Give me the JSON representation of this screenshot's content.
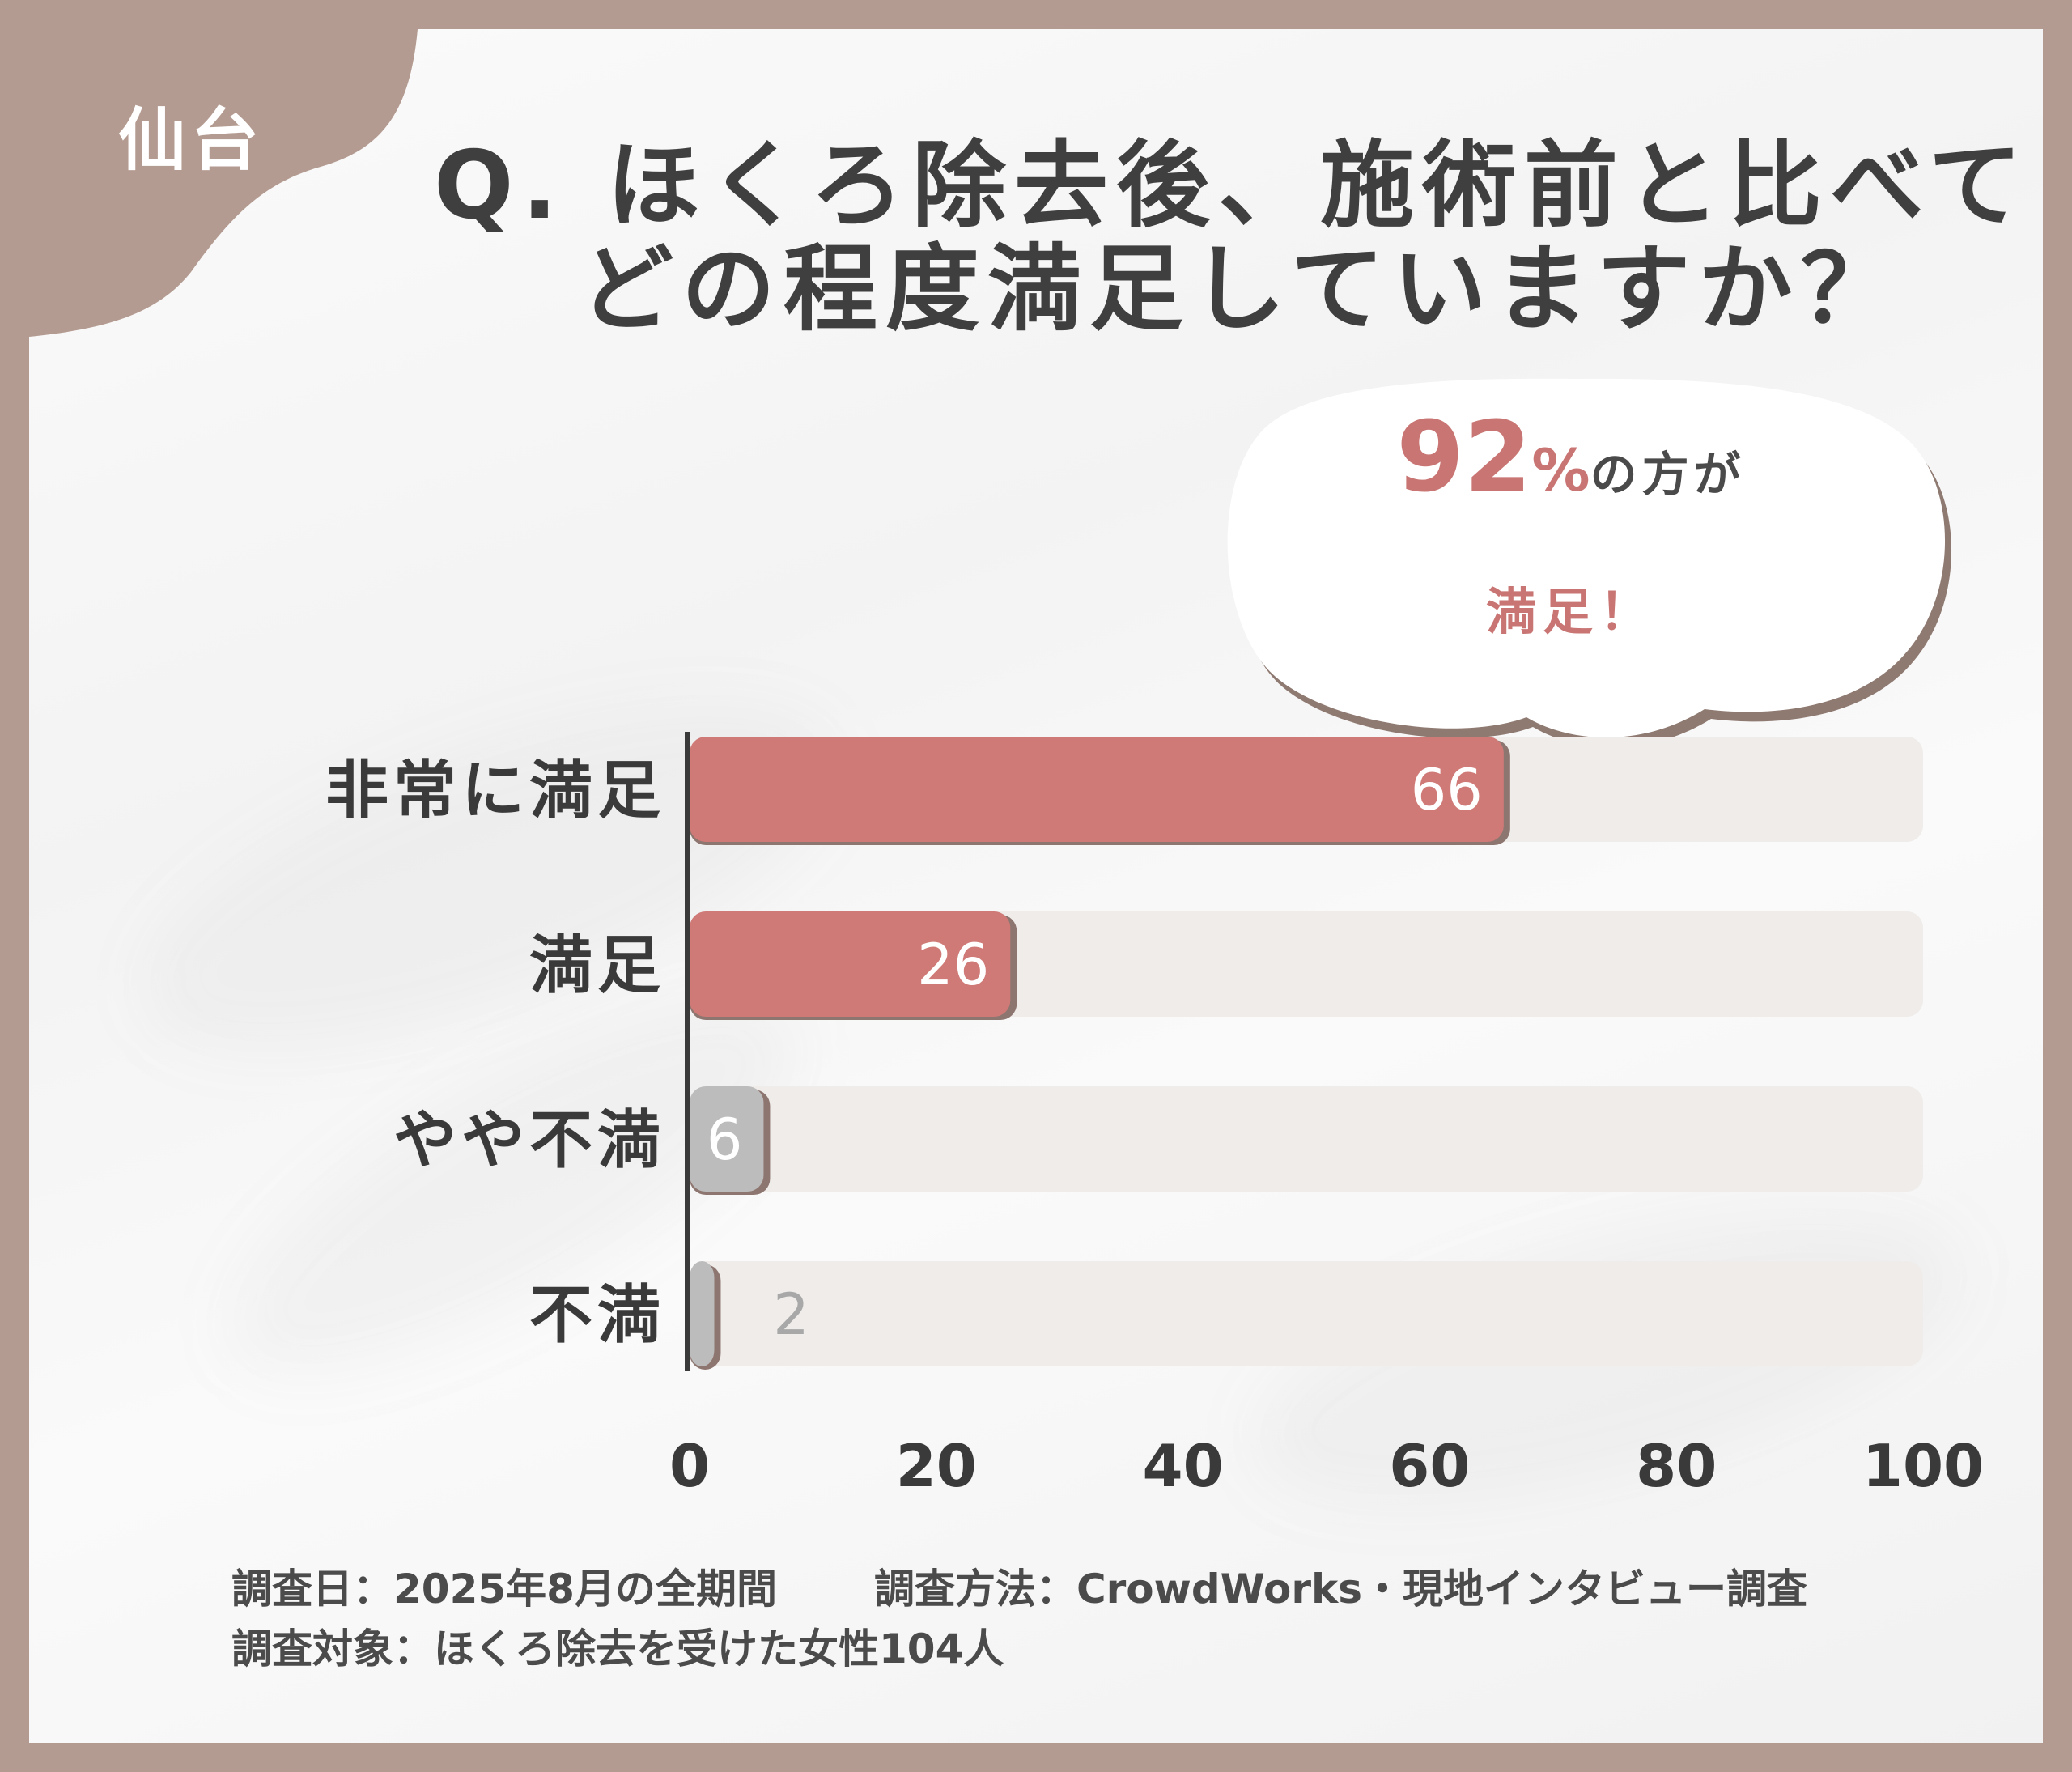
{
  "region_label": "仙台",
  "title": {
    "line1": "Q. ほくろ除去後、施術前と比べて",
    "line2": "どの程度満足していますか？"
  },
  "callout": {
    "value": "92",
    "unit": "%",
    "suffix": "の方が",
    "line2": "満足！"
  },
  "chart_data": {
    "type": "bar",
    "orientation": "horizontal",
    "categories": [
      "非常に満足",
      "満足",
      "やや不満",
      "不満"
    ],
    "values": [
      66,
      26,
      6,
      2
    ],
    "xlim": [
      0,
      100
    ],
    "xticks": [
      0,
      20,
      40,
      60,
      80,
      100
    ],
    "colors": {
      "positive": "#cf7a77",
      "negative": "#bcbcbc",
      "track": "#efecea",
      "axis": "#3a3a3a"
    },
    "grid": false,
    "legend": "none"
  },
  "footer": {
    "date": "調査日：2025年8月の全期間",
    "method": "調査方法：CrowdWorks・現地インタビュー調査",
    "target": "調査対象：ほくろ除去を受けた女性104人"
  },
  "colors": {
    "frame": "#b49b91",
    "accent": "#c87573",
    "text": "#3f3f3f"
  }
}
